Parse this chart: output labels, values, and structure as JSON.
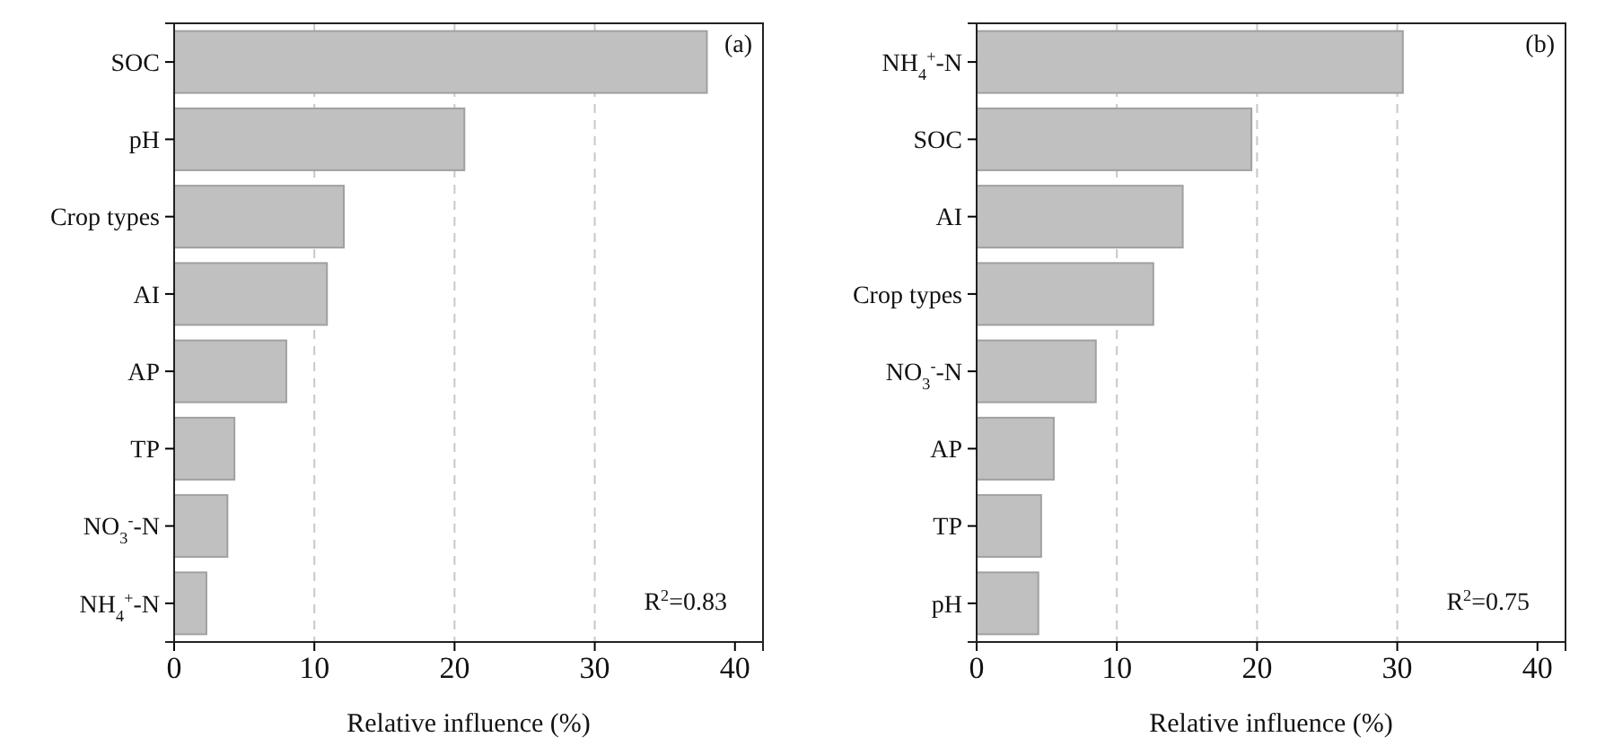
{
  "chart_data": [
    {
      "type": "bar",
      "orientation": "horizontal",
      "categories": [
        "SOC",
        "pH",
        "Crop types",
        "AI",
        "AP",
        "TP",
        "NO$_{3}$$^{-}$-N",
        "NH$_{4}$$^{+}$-N"
      ],
      "values": [
        38.0,
        20.7,
        12.1,
        10.9,
        8.0,
        4.3,
        3.8,
        2.3
      ],
      "color": "#c0c0c0",
      "xlim": [
        0,
        42
      ],
      "xticks": [
        0,
        10,
        20,
        30,
        40
      ],
      "xlabel": "Relative influence (%)",
      "grid": "x",
      "annotations": [
        "(a)",
        "R$^{2}$=0.83"
      ]
    },
    {
      "type": "bar",
      "orientation": "horizontal",
      "categories": [
        "NH$_{4}$$^{+}$-N",
        "SOC",
        "AI",
        "Crop types",
        "NO$_{3}$$^{-}$-N",
        "AP",
        "TP",
        "pH"
      ],
      "values": [
        30.4,
        19.6,
        14.7,
        12.6,
        8.5,
        5.5,
        4.6,
        4.4
      ],
      "color": "#c0c0c0",
      "xlim": [
        0,
        42
      ],
      "xticks": [
        0,
        10,
        20,
        30,
        40
      ],
      "xlabel": "Relative influence (%)",
      "grid": "x",
      "annotations": [
        "(b)",
        "R$^{2}$=0.75"
      ]
    }
  ]
}
